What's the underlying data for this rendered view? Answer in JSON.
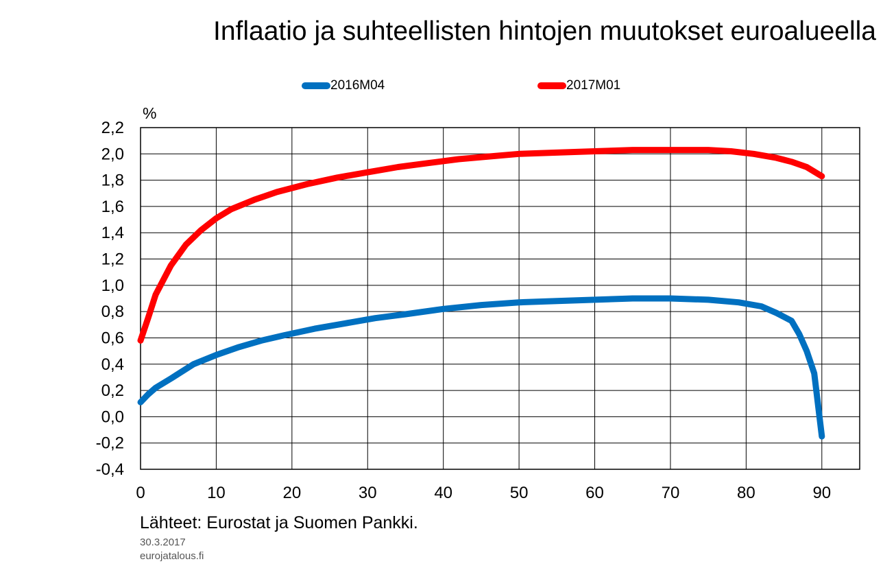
{
  "chart_data": {
    "type": "line",
    "title": "Inflaatio ja suhteellisten hintojen muutokset euroalueella",
    "ylabel": "%",
    "xlabel": "",
    "xlim": [
      0,
      95
    ],
    "ylim": [
      -0.4,
      2.2
    ],
    "x_ticks": [
      0,
      10,
      20,
      30,
      40,
      50,
      60,
      70,
      80,
      90
    ],
    "y_ticks": [
      -0.4,
      -0.2,
      0.0,
      0.2,
      0.4,
      0.6,
      0.8,
      1.0,
      1.2,
      1.4,
      1.6,
      1.8,
      2.0,
      2.2
    ],
    "y_tick_labels": [
      "-0,4",
      "-0,2",
      "0,0",
      "0,2",
      "0,4",
      "0,6",
      "0,8",
      "1,0",
      "1,2",
      "1,4",
      "1,6",
      "1,8",
      "2,0",
      "2,2"
    ],
    "grid": true,
    "legend_position": "top",
    "series": [
      {
        "name": "2016M04",
        "color": "#0070C0",
        "x": [
          0,
          1,
          2,
          4,
          7,
          10,
          13,
          16,
          19,
          23,
          27,
          31,
          35,
          40,
          45,
          50,
          55,
          60,
          65,
          70,
          75,
          79,
          82,
          84,
          86,
          87,
          88,
          89,
          90
        ],
        "values": [
          0.11,
          0.17,
          0.22,
          0.29,
          0.4,
          0.47,
          0.53,
          0.58,
          0.62,
          0.67,
          0.71,
          0.75,
          0.78,
          0.82,
          0.85,
          0.87,
          0.88,
          0.89,
          0.9,
          0.9,
          0.89,
          0.87,
          0.84,
          0.79,
          0.73,
          0.63,
          0.5,
          0.33,
          -0.15
        ]
      },
      {
        "name": "2017M01",
        "color": "#FF0000",
        "x": [
          0,
          1,
          2,
          4,
          6,
          8,
          10,
          12,
          15,
          18,
          22,
          26,
          30,
          34,
          38,
          42,
          46,
          50,
          55,
          60,
          65,
          70,
          75,
          78,
          81,
          84,
          86,
          88,
          90
        ],
        "values": [
          0.58,
          0.75,
          0.93,
          1.15,
          1.31,
          1.42,
          1.51,
          1.58,
          1.65,
          1.71,
          1.77,
          1.82,
          1.86,
          1.9,
          1.93,
          1.96,
          1.98,
          2.0,
          2.01,
          2.02,
          2.03,
          2.03,
          2.03,
          2.02,
          2.0,
          1.97,
          1.94,
          1.9,
          1.83
        ]
      }
    ]
  },
  "source": "Lähteet: Eurostat ja Suomen Pankki.",
  "date": "30.3.2017",
  "site": "eurojatalous.fi"
}
